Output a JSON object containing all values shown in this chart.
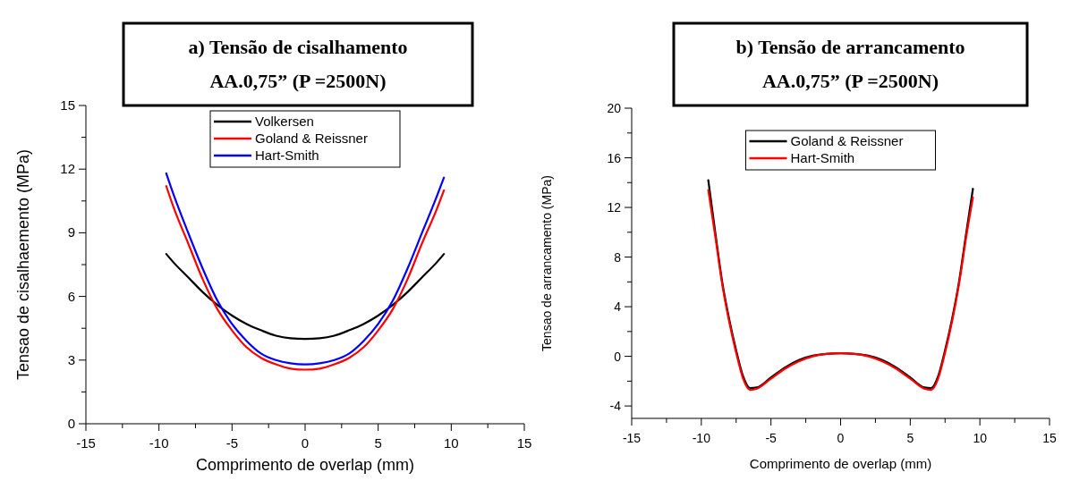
{
  "chart_data": [
    {
      "type": "line",
      "title": "a) Tensão de cisalhamento",
      "subtitle": "AA.0,75” (P =2500N)",
      "xlabel": "Comprimento de overlap (mm)",
      "ylabel": "Tensao de cisalhaemento (MPa)",
      "x": [
        -9.5,
        -9,
        -8,
        -7,
        -6,
        -5,
        -4,
        -3,
        -2,
        -1,
        0,
        1,
        2,
        3,
        4,
        5,
        6,
        7,
        8,
        9,
        9.5
      ],
      "series": [
        {
          "name": "Volkersen",
          "color": "#000000",
          "values": [
            8.0,
            7.6,
            6.9,
            6.2,
            5.6,
            5.1,
            4.7,
            4.4,
            4.15,
            4.03,
            4.0,
            4.03,
            4.15,
            4.4,
            4.7,
            5.1,
            5.6,
            6.2,
            6.9,
            7.6,
            8.0
          ]
        },
        {
          "name": "Goland & Reissner",
          "color": "#ff0000",
          "values": [
            11.2,
            10.2,
            8.5,
            6.8,
            5.4,
            4.4,
            3.6,
            3.1,
            2.8,
            2.6,
            2.55,
            2.6,
            2.8,
            3.1,
            3.6,
            4.4,
            5.4,
            6.8,
            8.5,
            10.1,
            11.0
          ]
        },
        {
          "name": "Hart-Smith",
          "color": "#0000ff",
          "values": [
            11.8,
            10.8,
            9.0,
            7.3,
            5.8,
            4.7,
            3.9,
            3.3,
            3.0,
            2.85,
            2.8,
            2.85,
            3.0,
            3.3,
            3.9,
            4.7,
            5.8,
            7.3,
            9.0,
            10.7,
            11.6
          ]
        }
      ],
      "xlim": [
        -15,
        15
      ],
      "xticks": [
        -15,
        {
          "value": -12.5,
          "label": null
        },
        -10,
        {
          "value": -7.5,
          "label": null
        },
        -5,
        {
          "value": -2.5,
          "label": null
        },
        0,
        {
          "value": 2.5,
          "label": null
        },
        5,
        {
          "value": 7.5,
          "label": null
        },
        10,
        {
          "value": 12.5,
          "label": null
        },
        15
      ],
      "ylim": [
        0,
        15
      ],
      "yticks": [
        0,
        {
          "value": 1.5,
          "label": null
        },
        3,
        {
          "value": 4.5,
          "label": null
        },
        6,
        {
          "value": 7.5,
          "label": null
        },
        9,
        {
          "value": 10.5,
          "label": null
        },
        12,
        {
          "value": 13.5,
          "label": null
        },
        15
      ],
      "legend": "top",
      "grid": false,
      "line_style": "solid",
      "marker": "none"
    },
    {
      "type": "line",
      "title": "b) Tensão de arrancamento",
      "subtitle": "AA.0,75” (P =2500N)",
      "xlabel": "Comprimento de overlap (mm)",
      "ylabel": "Tensao de arrancamento (MPa)",
      "x": [
        -9.5,
        -9,
        -8.5,
        -8,
        -7.5,
        -7,
        -6.5,
        -6,
        -5,
        -4,
        -3,
        -2,
        -1,
        0,
        1,
        2,
        3,
        4,
        5,
        6,
        6.5,
        7,
        7.5,
        8,
        8.5,
        9,
        9.5
      ],
      "series": [
        {
          "name": "Goland & Reissner",
          "color": "#000000",
          "values": [
            14.2,
            10.0,
            6.0,
            3.0,
            0.5,
            -1.6,
            -2.55,
            -2.5,
            -1.7,
            -0.9,
            -0.3,
            0.05,
            0.2,
            0.25,
            0.2,
            0.05,
            -0.3,
            -0.9,
            -1.7,
            -2.5,
            -2.55,
            -1.6,
            0.5,
            3.0,
            6.0,
            9.8,
            13.5
          ]
        },
        {
          "name": "Hart-Smith",
          "color": "#ff0000",
          "values": [
            13.4,
            9.7,
            5.8,
            2.8,
            0.3,
            -1.8,
            -2.7,
            -2.6,
            -1.8,
            -1.0,
            -0.4,
            0.0,
            0.2,
            0.25,
            0.2,
            0.0,
            -0.4,
            -1.0,
            -1.8,
            -2.6,
            -2.7,
            -1.8,
            0.3,
            2.8,
            5.8,
            9.5,
            12.8
          ]
        }
      ],
      "xlim": [
        -15,
        15
      ],
      "xticks": [
        -15,
        {
          "value": -12.5,
          "label": null
        },
        -10,
        {
          "value": -7.5,
          "label": null
        },
        -5,
        {
          "value": -2.5,
          "label": null
        },
        0,
        {
          "value": 2.5,
          "label": null
        },
        5,
        {
          "value": 7.5,
          "label": null
        },
        10,
        {
          "value": 12.5,
          "label": null
        },
        15
      ],
      "ylim": [
        -5,
        20
      ],
      "yticks": [
        -4,
        {
          "value": -2,
          "label": null
        },
        0,
        {
          "value": 2,
          "label": null
        },
        4,
        {
          "value": 6,
          "label": null
        },
        8,
        {
          "value": 10,
          "label": null
        },
        12,
        {
          "value": 14,
          "label": null
        },
        16,
        {
          "value": 18,
          "label": null
        },
        20
      ],
      "legend": "top",
      "grid": false,
      "line_style": "solid",
      "marker": "none"
    }
  ]
}
